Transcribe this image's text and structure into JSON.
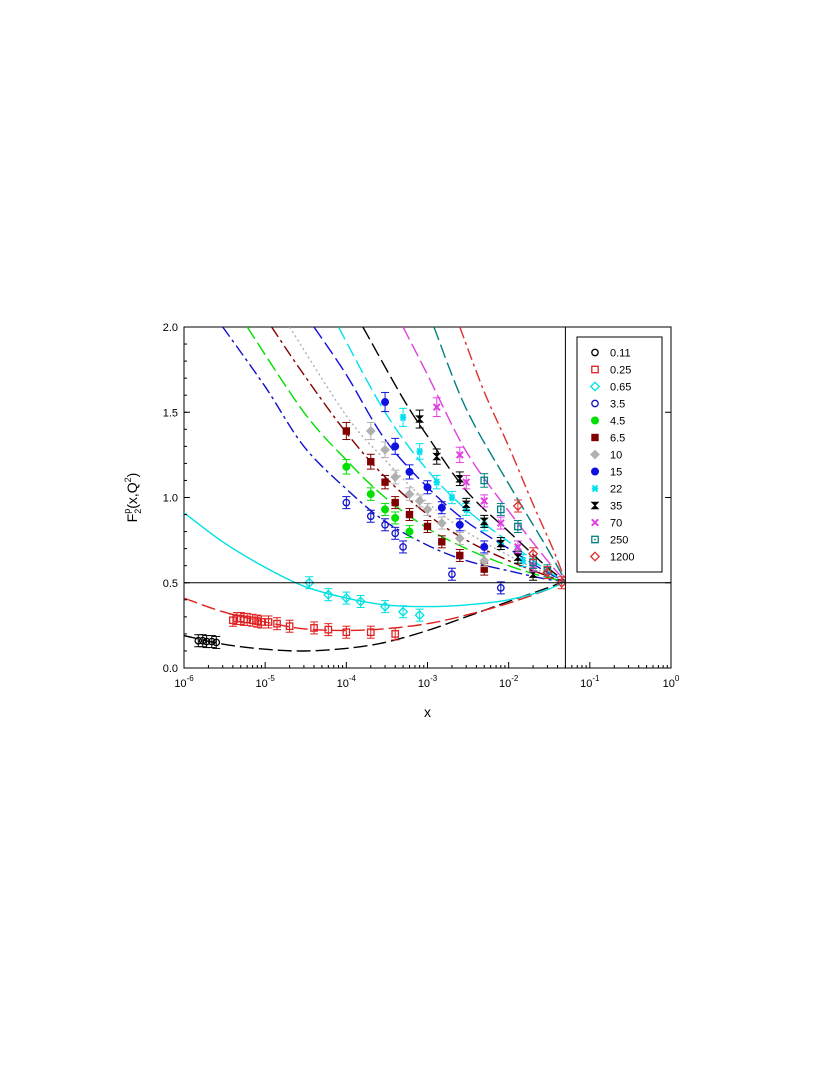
{
  "chart_data": {
    "type": "scatter",
    "title": "",
    "xlabel": "x",
    "ylabel": {
      "main": "F",
      "sub": "2",
      "sup": "p",
      "args": "(x,Q",
      "args_sup": "2",
      "args_end": ")"
    },
    "x_scale": "log",
    "xlim": [
      1e-06,
      1
    ],
    "ylim": [
      0,
      2
    ],
    "x_ticks": [
      {
        "base": "10",
        "exp": "-6",
        "value": 1e-06
      },
      {
        "base": "10",
        "exp": "-5",
        "value": 1e-05
      },
      {
        "base": "10",
        "exp": "-4",
        "value": 0.0001
      },
      {
        "base": "10",
        "exp": "-3",
        "value": 0.001
      },
      {
        "base": "10",
        "exp": "-2",
        "value": 0.01
      },
      {
        "base": "10",
        "exp": "-1",
        "value": 0.1
      },
      {
        "base": "10",
        "exp": "0",
        "value": 1
      }
    ],
    "y_ticks": [
      "0.0",
      "0.5",
      "1.0",
      "1.5",
      "2.0"
    ],
    "reference_lines": {
      "x": 0.05,
      "y": 0.5
    },
    "legend_position": "top-right",
    "grid": false,
    "series": [
      {
        "name": "0.11",
        "color": "#000000",
        "marker": "circle-open",
        "dash": "long-dash",
        "curve": [
          [
            1e-06,
            0.19
          ],
          [
            3e-06,
            0.14
          ],
          [
            1e-05,
            0.11
          ],
          [
            3e-05,
            0.1
          ],
          [
            0.0001,
            0.115
          ],
          [
            0.0003,
            0.15
          ],
          [
            0.001,
            0.22
          ],
          [
            0.003,
            0.3
          ],
          [
            0.01,
            0.39
          ],
          [
            0.03,
            0.47
          ],
          [
            0.05,
            0.51
          ]
        ],
        "points": [
          [
            1.5e-06,
            0.16
          ],
          [
            1.7e-06,
            0.16
          ],
          [
            1.9e-06,
            0.155
          ],
          [
            2.2e-06,
            0.155
          ],
          [
            2.5e-06,
            0.15
          ]
        ]
      },
      {
        "name": "0.25",
        "color": "#e02020",
        "marker": "square-open",
        "dash": "long-dash",
        "curve": [
          [
            1e-06,
            0.41
          ],
          [
            3e-06,
            0.33
          ],
          [
            1e-05,
            0.27
          ],
          [
            3e-05,
            0.23
          ],
          [
            0.0001,
            0.22
          ],
          [
            0.0003,
            0.23
          ],
          [
            0.001,
            0.26
          ],
          [
            0.003,
            0.31
          ],
          [
            0.01,
            0.38
          ],
          [
            0.03,
            0.46
          ],
          [
            0.05,
            0.51
          ]
        ],
        "points": [
          [
            4e-06,
            0.28
          ],
          [
            4.5e-06,
            0.29
          ],
          [
            5e-06,
            0.29
          ],
          [
            5.5e-06,
            0.285
          ],
          [
            6e-06,
            0.285
          ],
          [
            7e-06,
            0.28
          ],
          [
            8e-06,
            0.275
          ],
          [
            9e-06,
            0.27
          ],
          [
            1.1e-05,
            0.27
          ],
          [
            1.4e-05,
            0.26
          ],
          [
            2e-05,
            0.245
          ],
          [
            4e-05,
            0.235
          ],
          [
            6e-05,
            0.225
          ],
          [
            0.0001,
            0.21
          ],
          [
            0.0002,
            0.21
          ],
          [
            0.0004,
            0.2
          ]
        ]
      },
      {
        "name": "0.65",
        "color": "#00e0e0",
        "marker": "diamond-open",
        "dash": "solid",
        "curve": [
          [
            1e-06,
            0.91
          ],
          [
            3e-06,
            0.74
          ],
          [
            1e-05,
            0.59
          ],
          [
            3e-05,
            0.48
          ],
          [
            0.0001,
            0.41
          ],
          [
            0.0003,
            0.37
          ],
          [
            0.001,
            0.36
          ],
          [
            0.003,
            0.37
          ],
          [
            0.01,
            0.4
          ],
          [
            0.03,
            0.46
          ],
          [
            0.05,
            0.51
          ]
        ],
        "points": [
          [
            3.5e-05,
            0.5
          ],
          [
            6e-05,
            0.43
          ],
          [
            0.0001,
            0.41
          ],
          [
            0.00015,
            0.39
          ],
          [
            0.0003,
            0.36
          ],
          [
            0.0005,
            0.33
          ],
          [
            0.0008,
            0.31
          ]
        ]
      },
      {
        "name": "3.5",
        "color": "#1010c8",
        "marker": "circle-open",
        "dash": "dash-dot",
        "curve": [
          [
            3e-06,
            2.0
          ],
          [
            1e-05,
            1.65
          ],
          [
            3e-05,
            1.3
          ],
          [
            0.0001,
            1.05
          ],
          [
            0.0003,
            0.86
          ],
          [
            0.001,
            0.72
          ],
          [
            0.003,
            0.63
          ],
          [
            0.01,
            0.57
          ],
          [
            0.03,
            0.52
          ],
          [
            0.05,
            0.51
          ]
        ],
        "points": [
          [
            0.0001,
            0.97
          ],
          [
            0.0002,
            0.89
          ],
          [
            0.0003,
            0.84
          ],
          [
            0.0004,
            0.79
          ],
          [
            0.0005,
            0.71
          ],
          [
            0.002,
            0.55
          ],
          [
            0.008,
            0.47
          ]
        ]
      },
      {
        "name": "4.5",
        "color": "#00e000",
        "marker": "circle",
        "dash": "long-dash",
        "curve": [
          [
            6e-06,
            2.0
          ],
          [
            3e-05,
            1.5
          ],
          [
            0.0001,
            1.22
          ],
          [
            0.0003,
            1.0
          ],
          [
            0.001,
            0.82
          ],
          [
            0.003,
            0.7
          ],
          [
            0.01,
            0.6
          ],
          [
            0.03,
            0.53
          ],
          [
            0.05,
            0.51
          ]
        ],
        "points": [
          [
            0.0001,
            1.18
          ],
          [
            0.0002,
            1.02
          ],
          [
            0.0003,
            0.93
          ],
          [
            0.0004,
            0.88
          ],
          [
            0.0006,
            0.8
          ]
        ]
      },
      {
        "name": "6.5",
        "color": "#800000",
        "marker": "square",
        "dash": "dash-dot",
        "curve": [
          [
            1.2e-05,
            2.0
          ],
          [
            3e-05,
            1.72
          ],
          [
            0.0001,
            1.38
          ],
          [
            0.0003,
            1.12
          ],
          [
            0.001,
            0.9
          ],
          [
            0.003,
            0.75
          ],
          [
            0.01,
            0.63
          ],
          [
            0.03,
            0.54
          ],
          [
            0.05,
            0.51
          ]
        ],
        "points": [
          [
            0.0001,
            1.39
          ],
          [
            0.0002,
            1.21
          ],
          [
            0.0003,
            1.09
          ],
          [
            0.0004,
            0.97
          ],
          [
            0.0006,
            0.9
          ],
          [
            0.001,
            0.83
          ],
          [
            0.0015,
            0.74
          ],
          [
            0.0025,
            0.66
          ],
          [
            0.005,
            0.58
          ]
        ]
      },
      {
        "name": "10",
        "color": "#b0b0b0",
        "marker": "diamond",
        "dash": "dotted",
        "curve": [
          [
            2e-05,
            2.0
          ],
          [
            0.0001,
            1.48
          ],
          [
            0.0003,
            1.22
          ],
          [
            0.001,
            0.97
          ],
          [
            0.003,
            0.8
          ],
          [
            0.01,
            0.66
          ],
          [
            0.03,
            0.55
          ],
          [
            0.05,
            0.51
          ]
        ],
        "points": [
          [
            0.0002,
            1.39
          ],
          [
            0.0003,
            1.28
          ],
          [
            0.0004,
            1.12
          ],
          [
            0.0006,
            1.02
          ],
          [
            0.0008,
            0.98
          ],
          [
            0.001,
            0.93
          ],
          [
            0.0015,
            0.85
          ],
          [
            0.0025,
            0.76
          ],
          [
            0.005,
            0.63
          ]
        ]
      },
      {
        "name": "15",
        "color": "#1010e0",
        "marker": "circle",
        "dash": "long-dash",
        "curve": [
          [
            4e-05,
            2.0
          ],
          [
            0.0001,
            1.72
          ],
          [
            0.0003,
            1.34
          ],
          [
            0.001,
            1.06
          ],
          [
            0.003,
            0.86
          ],
          [
            0.01,
            0.7
          ],
          [
            0.03,
            0.56
          ],
          [
            0.05,
            0.51
          ]
        ],
        "points": [
          [
            0.0003,
            1.56
          ],
          [
            0.0004,
            1.3
          ],
          [
            0.0006,
            1.15
          ],
          [
            0.001,
            1.06
          ],
          [
            0.0015,
            0.94
          ],
          [
            0.0025,
            0.84
          ],
          [
            0.005,
            0.71
          ]
        ]
      },
      {
        "name": "22",
        "color": "#00e0f0",
        "marker": "star",
        "dash": "long-dash",
        "curve": [
          [
            8e-05,
            2.0
          ],
          [
            0.0003,
            1.5
          ],
          [
            0.001,
            1.16
          ],
          [
            0.003,
            0.93
          ],
          [
            0.01,
            0.74
          ],
          [
            0.03,
            0.57
          ],
          [
            0.05,
            0.51
          ]
        ],
        "points": [
          [
            0.0005,
            1.47
          ],
          [
            0.0008,
            1.27
          ],
          [
            0.0013,
            1.09
          ],
          [
            0.002,
            1.0
          ],
          [
            0.003,
            0.93
          ],
          [
            0.005,
            0.84
          ],
          [
            0.008,
            0.73
          ],
          [
            0.015,
            0.63
          ]
        ]
      },
      {
        "name": "35",
        "color": "#000000",
        "marker": "hourglass",
        "dash": "long-dash",
        "curve": [
          [
            0.00016,
            2.0
          ],
          [
            0.0005,
            1.58
          ],
          [
            0.001,
            1.36
          ],
          [
            0.003,
            1.04
          ],
          [
            0.01,
            0.8
          ],
          [
            0.03,
            0.59
          ],
          [
            0.05,
            0.51
          ]
        ],
        "points": [
          [
            0.0008,
            1.46
          ],
          [
            0.0013,
            1.24
          ],
          [
            0.0025,
            1.11
          ],
          [
            0.003,
            0.96
          ],
          [
            0.005,
            0.86
          ],
          [
            0.008,
            0.73
          ],
          [
            0.013,
            0.65
          ],
          [
            0.02,
            0.55
          ]
        ]
      },
      {
        "name": "70",
        "color": "#e040e0",
        "marker": "cross",
        "dash": "long-dash",
        "curve": [
          [
            0.0005,
            2.0
          ],
          [
            0.001,
            1.72
          ],
          [
            0.003,
            1.27
          ],
          [
            0.01,
            0.92
          ],
          [
            0.03,
            0.63
          ],
          [
            0.05,
            0.51
          ]
        ],
        "points": [
          [
            0.0013,
            1.53
          ],
          [
            0.0025,
            1.25
          ],
          [
            0.003,
            1.09
          ],
          [
            0.005,
            0.98
          ],
          [
            0.008,
            0.85
          ],
          [
            0.013,
            0.71
          ],
          [
            0.02,
            0.6
          ]
        ]
      },
      {
        "name": "250",
        "color": "#008080",
        "marker": "square-dot",
        "dash": "long-dash",
        "curve": [
          [
            0.0012,
            2.0
          ],
          [
            0.003,
            1.52
          ],
          [
            0.01,
            1.08
          ],
          [
            0.03,
            0.7
          ],
          [
            0.05,
            0.51
          ]
        ],
        "points": [
          [
            0.005,
            1.1
          ],
          [
            0.008,
            0.93
          ],
          [
            0.013,
            0.83
          ],
          [
            0.02,
            0.62
          ],
          [
            0.03,
            0.57
          ]
        ]
      },
      {
        "name": "1200",
        "color": "#e03030",
        "marker": "diamond-open",
        "dash": "dash-dot",
        "curve": [
          [
            0.0025,
            2.0
          ],
          [
            0.005,
            1.62
          ],
          [
            0.01,
            1.3
          ],
          [
            0.02,
            0.96
          ],
          [
            0.035,
            0.7
          ],
          [
            0.05,
            0.51
          ]
        ],
        "points": [
          [
            0.013,
            0.95
          ],
          [
            0.02,
            0.67
          ],
          [
            0.03,
            0.56
          ],
          [
            0.045,
            0.5
          ]
        ]
      }
    ]
  }
}
